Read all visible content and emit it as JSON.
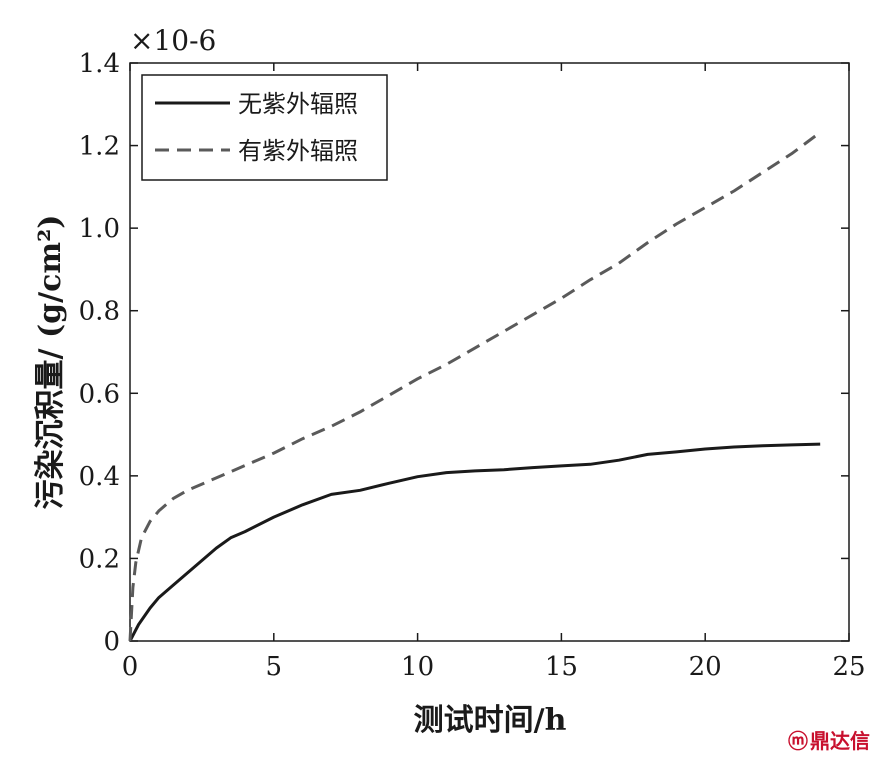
{
  "chart_data": {
    "type": "line",
    "title": "",
    "xlabel": "测试时间/h",
    "ylabel": "污染沉积量/ (g/cm²)",
    "y_multiplier": "×10-6",
    "xlim": [
      0,
      25
    ],
    "ylim": [
      0,
      1.4
    ],
    "xticks": [
      "0",
      "5",
      "10",
      "15",
      "20",
      "25"
    ],
    "yticks": [
      "0",
      "0.2",
      "0.4",
      "0.6",
      "0.8",
      "1.0",
      "1.2",
      "1.4"
    ],
    "grid": false,
    "legend_position": "top-left",
    "series": [
      {
        "name": "无紫外辐照",
        "style": "solid",
        "color": "#1a1a1a",
        "x": [
          0,
          0.3,
          0.7,
          1,
          1.5,
          2,
          2.5,
          3,
          3.5,
          4,
          5,
          6,
          7,
          8,
          9,
          10,
          11,
          12,
          13,
          14,
          15,
          16,
          17,
          18,
          19,
          20,
          21,
          22,
          23,
          24
        ],
        "y": [
          0,
          0.04,
          0.08,
          0.105,
          0.135,
          0.165,
          0.195,
          0.225,
          0.25,
          0.265,
          0.3,
          0.33,
          0.355,
          0.365,
          0.382,
          0.398,
          0.408,
          0.412,
          0.415,
          0.42,
          0.424,
          0.428,
          0.438,
          0.452,
          0.458,
          0.465,
          0.47,
          0.473,
          0.475,
          0.477
        ]
      },
      {
        "name": "有紫外辐照",
        "style": "dashed",
        "color": "#5a5a5a",
        "x": [
          0,
          0.1,
          0.2,
          0.4,
          0.7,
          1,
          1.5,
          2,
          3,
          4,
          5,
          6,
          7,
          8,
          9,
          10,
          11,
          12,
          13,
          14,
          15,
          16,
          17,
          18,
          19,
          20,
          21,
          22,
          23,
          24
        ],
        "y": [
          0,
          0.13,
          0.19,
          0.25,
          0.29,
          0.315,
          0.345,
          0.365,
          0.395,
          0.425,
          0.455,
          0.49,
          0.52,
          0.555,
          0.595,
          0.635,
          0.67,
          0.71,
          0.75,
          0.79,
          0.83,
          0.875,
          0.915,
          0.965,
          1.01,
          1.05,
          1.09,
          1.135,
          1.18,
          1.232
        ]
      }
    ]
  },
  "watermark": {
    "symbol": "ⓜ",
    "text": "鼎达信",
    "color": "#c8102e"
  }
}
